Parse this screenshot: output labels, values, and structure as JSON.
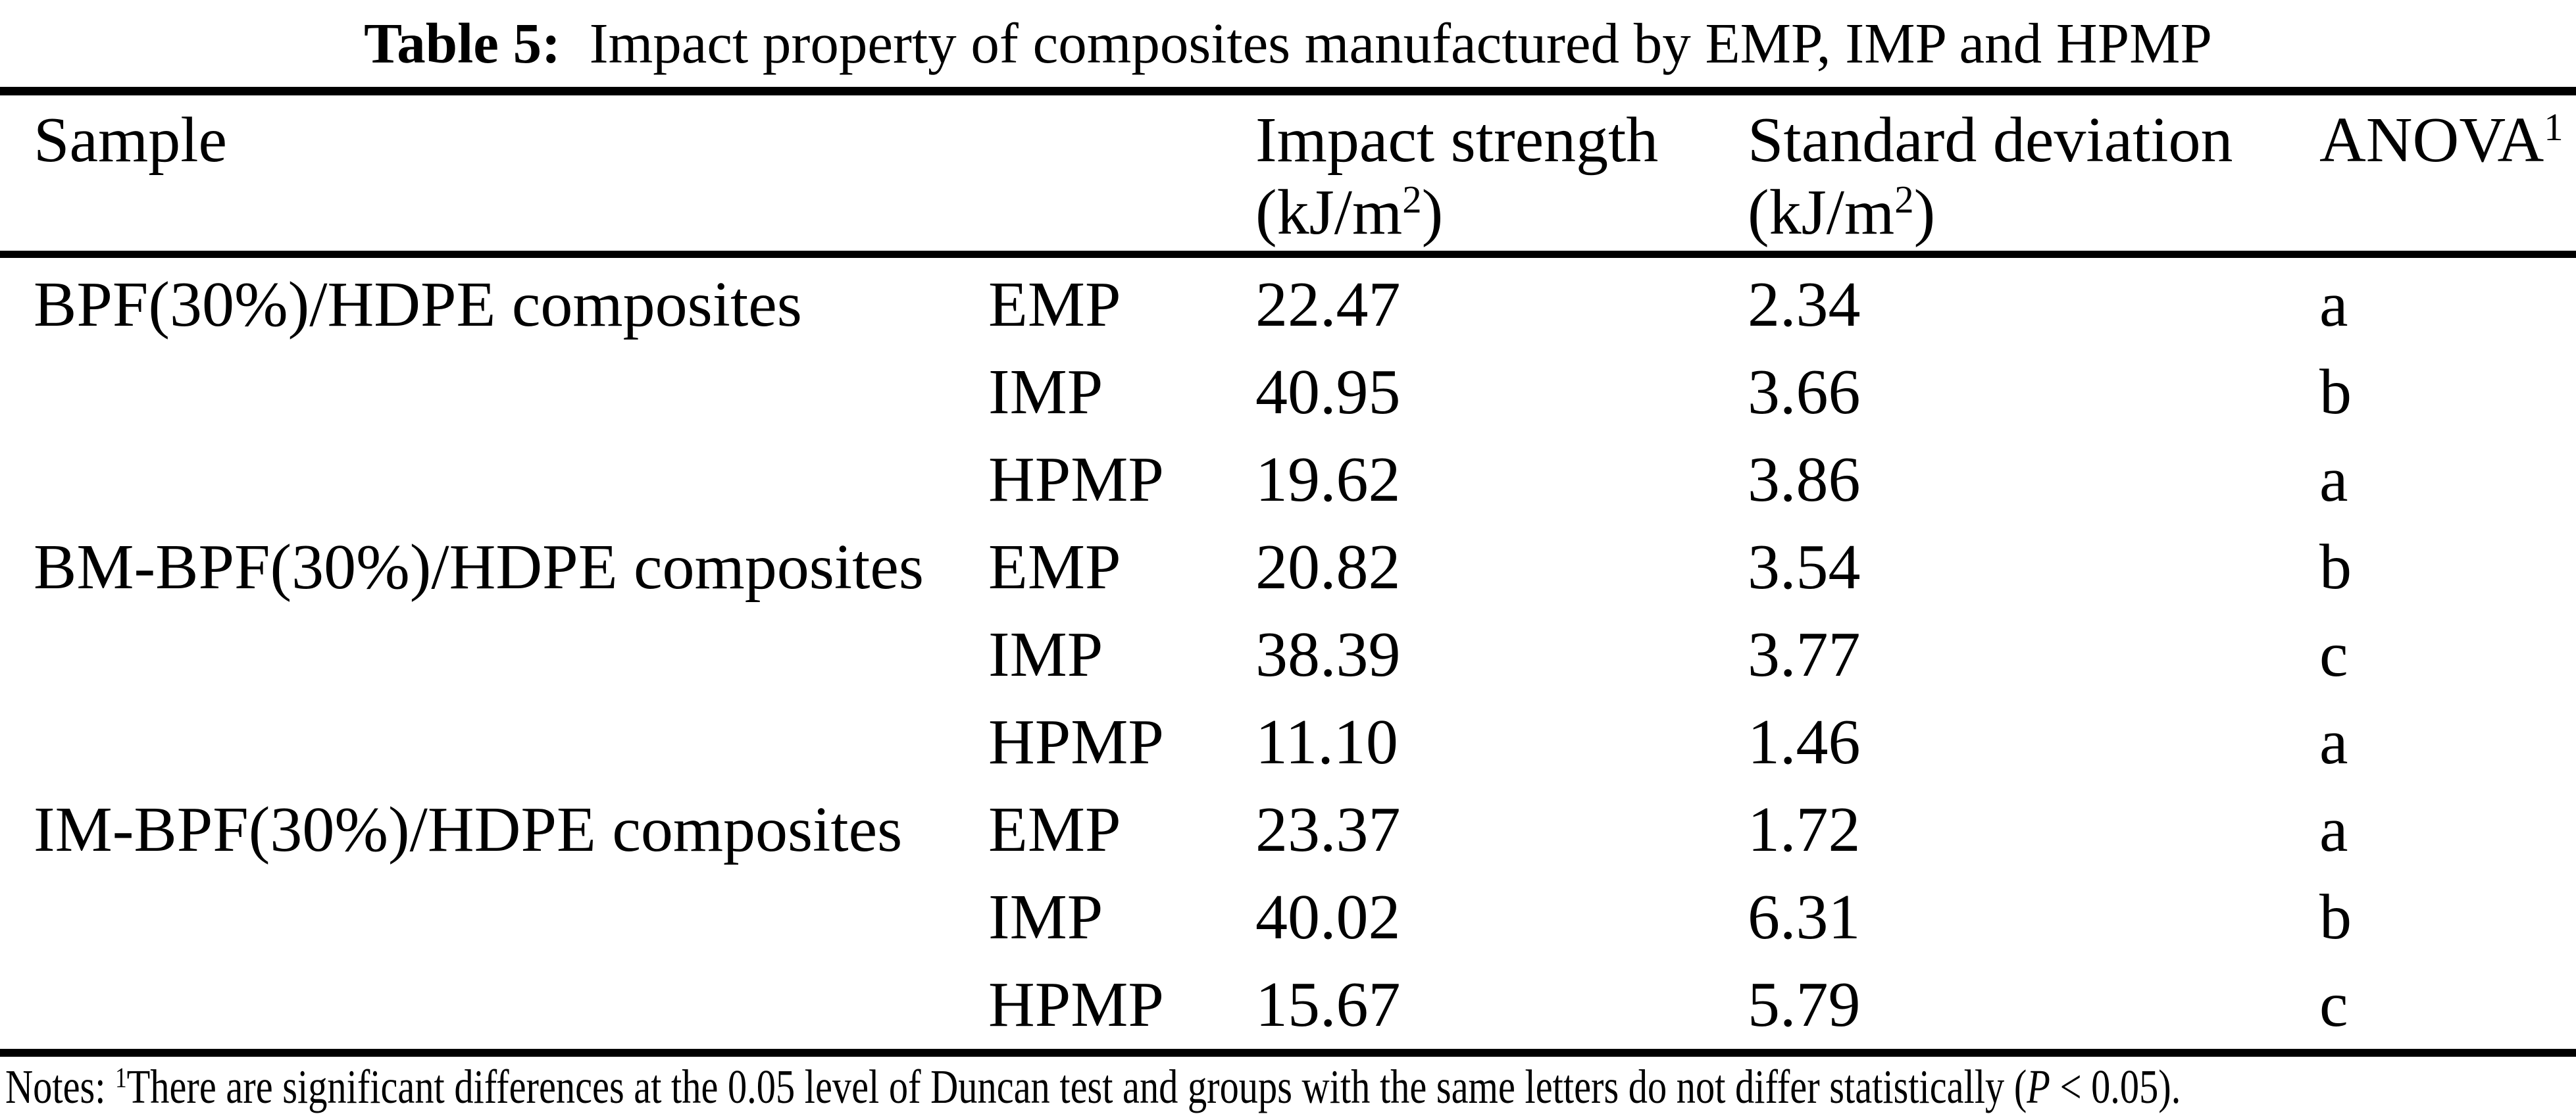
{
  "title": {
    "label": "Table 5:",
    "text": "Impact property of composites manufactured by EMP, IMP and HPMP"
  },
  "columns": {
    "sample": "Sample",
    "impact_strength": "Impact strength",
    "standard_deviation": "Standard deviation",
    "unit_prefix": "(kJ/m",
    "unit_exponent": "2",
    "unit_suffix": ")",
    "anova": "ANOVA",
    "anova_superscript": "1"
  },
  "rows": [
    {
      "sample": "BPF(30%)/HDPE composites",
      "process": "EMP",
      "impact_strength": "22.47",
      "standard_deviation": "2.34",
      "anova": "a"
    },
    {
      "sample": "",
      "process": "IMP",
      "impact_strength": "40.95",
      "standard_deviation": "3.66",
      "anova": "b"
    },
    {
      "sample": "",
      "process": "HPMP",
      "impact_strength": "19.62",
      "standard_deviation": "3.86",
      "anova": "a"
    },
    {
      "sample": "BM-BPF(30%)/HDPE composites",
      "process": "EMP",
      "impact_strength": "20.82",
      "standard_deviation": "3.54",
      "anova": "b"
    },
    {
      "sample": "",
      "process": "IMP",
      "impact_strength": "38.39",
      "standard_deviation": "3.77",
      "anova": "c"
    },
    {
      "sample": "",
      "process": "HPMP",
      "impact_strength": "11.10",
      "standard_deviation": "1.46",
      "anova": "a"
    },
    {
      "sample": "IM-BPF(30%)/HDPE composites",
      "process": "EMP",
      "impact_strength": "23.37",
      "standard_deviation": "1.72",
      "anova": "a"
    },
    {
      "sample": "",
      "process": "IMP",
      "impact_strength": "40.02",
      "standard_deviation": "6.31",
      "anova": "b"
    },
    {
      "sample": "",
      "process": "HPMP",
      "impact_strength": "15.67",
      "standard_deviation": "5.79",
      "anova": "c"
    }
  ],
  "notes": {
    "label": "Notes:",
    "superscript": "1",
    "text": "There are significant differences at the 0.05 level of Duncan test and groups with the same letters do not differ statistically (",
    "p_symbol": "P",
    "tail": " < 0.05)."
  },
  "colors": {
    "text": "#000000",
    "background": "#ffffff",
    "rule": "#000000"
  }
}
